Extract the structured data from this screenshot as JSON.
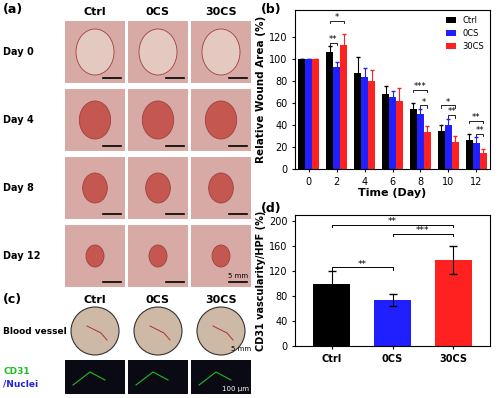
{
  "chart_data": [
    {
      "type": "bar",
      "panel_label": "(b)",
      "x_label": "Time (Day)",
      "y_label": "Relative Wound Area (%)",
      "x": [
        0,
        2,
        4,
        6,
        8,
        10,
        12
      ],
      "xlim": [
        -1,
        13
      ],
      "xticks": [
        0,
        2,
        4,
        6,
        8,
        10,
        12
      ],
      "ylim": [
        0,
        145
      ],
      "yticks": [
        0,
        20,
        40,
        60,
        80,
        100,
        120
      ],
      "legend": "upper right",
      "series": [
        {
          "name": "Ctrl",
          "color": "#000000",
          "values": [
            100,
            107,
            88,
            68,
            55,
            35,
            27
          ],
          "errors": [
            0,
            5,
            14,
            8,
            5,
            5,
            5
          ]
        },
        {
          "name": "0CS",
          "color": "#1f1fff",
          "values": [
            100,
            93,
            84,
            66,
            50,
            40,
            24
          ],
          "errors": [
            0,
            5,
            8,
            5,
            5,
            6,
            5
          ]
        },
        {
          "name": "30CS",
          "color": "#ff2020",
          "values": [
            100,
            113,
            80,
            62,
            34,
            25,
            15
          ],
          "errors": [
            0,
            10,
            10,
            12,
            5,
            5,
            3
          ]
        }
      ],
      "significance": [
        {
          "x": 2,
          "pair": [
            "Ctrl",
            "0CS"
          ],
          "text": "**"
        },
        {
          "x": 2,
          "pair": [
            "Ctrl",
            "30CS"
          ],
          "text": "*"
        },
        {
          "x": 8,
          "pair": [
            "0CS",
            "30CS"
          ],
          "text": "*"
        },
        {
          "x": 8,
          "pair": [
            "Ctrl",
            "30CS"
          ],
          "text": "***"
        },
        {
          "x": 10,
          "pair": [
            "0CS",
            "30CS"
          ],
          "text": "**"
        },
        {
          "x": 10,
          "pair": [
            "Ctrl",
            "30CS"
          ],
          "text": "*"
        },
        {
          "x": 12,
          "pair": [
            "0CS",
            "30CS"
          ],
          "text": "**"
        },
        {
          "x": 12,
          "pair": [
            "Ctrl",
            "30CS"
          ],
          "text": "**"
        }
      ]
    },
    {
      "type": "bar",
      "panel_label": "(d)",
      "y_label": "CD31 vascularity/HPF (%)",
      "categories": [
        "Ctrl",
        "0CS",
        "30CS"
      ],
      "values": [
        100,
        74,
        138
      ],
      "errors": [
        20,
        10,
        22
      ],
      "colors": [
        "#000000",
        "#1f1fff",
        "#ff2020"
      ],
      "ylim": [
        0,
        210
      ],
      "yticks": [
        0,
        40,
        80,
        120,
        160,
        200
      ],
      "significance": [
        {
          "pair": [
            "Ctrl",
            "0CS"
          ],
          "text": "**"
        },
        {
          "pair": [
            "0CS",
            "30CS"
          ],
          "text": "***"
        },
        {
          "pair": [
            "Ctrl",
            "30CS"
          ],
          "text": "**"
        }
      ]
    }
  ],
  "photo_panels": [
    {
      "panel_label": "(a)",
      "columns": [
        "Ctrl",
        "0CS",
        "30CS"
      ],
      "rows": [
        "Day 0",
        "Day 4",
        "Day 8",
        "Day 12"
      ],
      "scale_bar": "5 mm"
    },
    {
      "panel_label": "(c)",
      "columns": [
        "Ctrl",
        "0CS",
        "30CS"
      ],
      "rows": [
        {
          "label": "Blood vessel",
          "scale_bar": "5 mm"
        },
        {
          "label_parts": [
            {
              "text": "CD31",
              "color": "#22bb22"
            },
            {
              "text": "/Nuclei",
              "color": "#2222dd"
            }
          ],
          "scale_bar": "100 μm"
        }
      ]
    }
  ]
}
